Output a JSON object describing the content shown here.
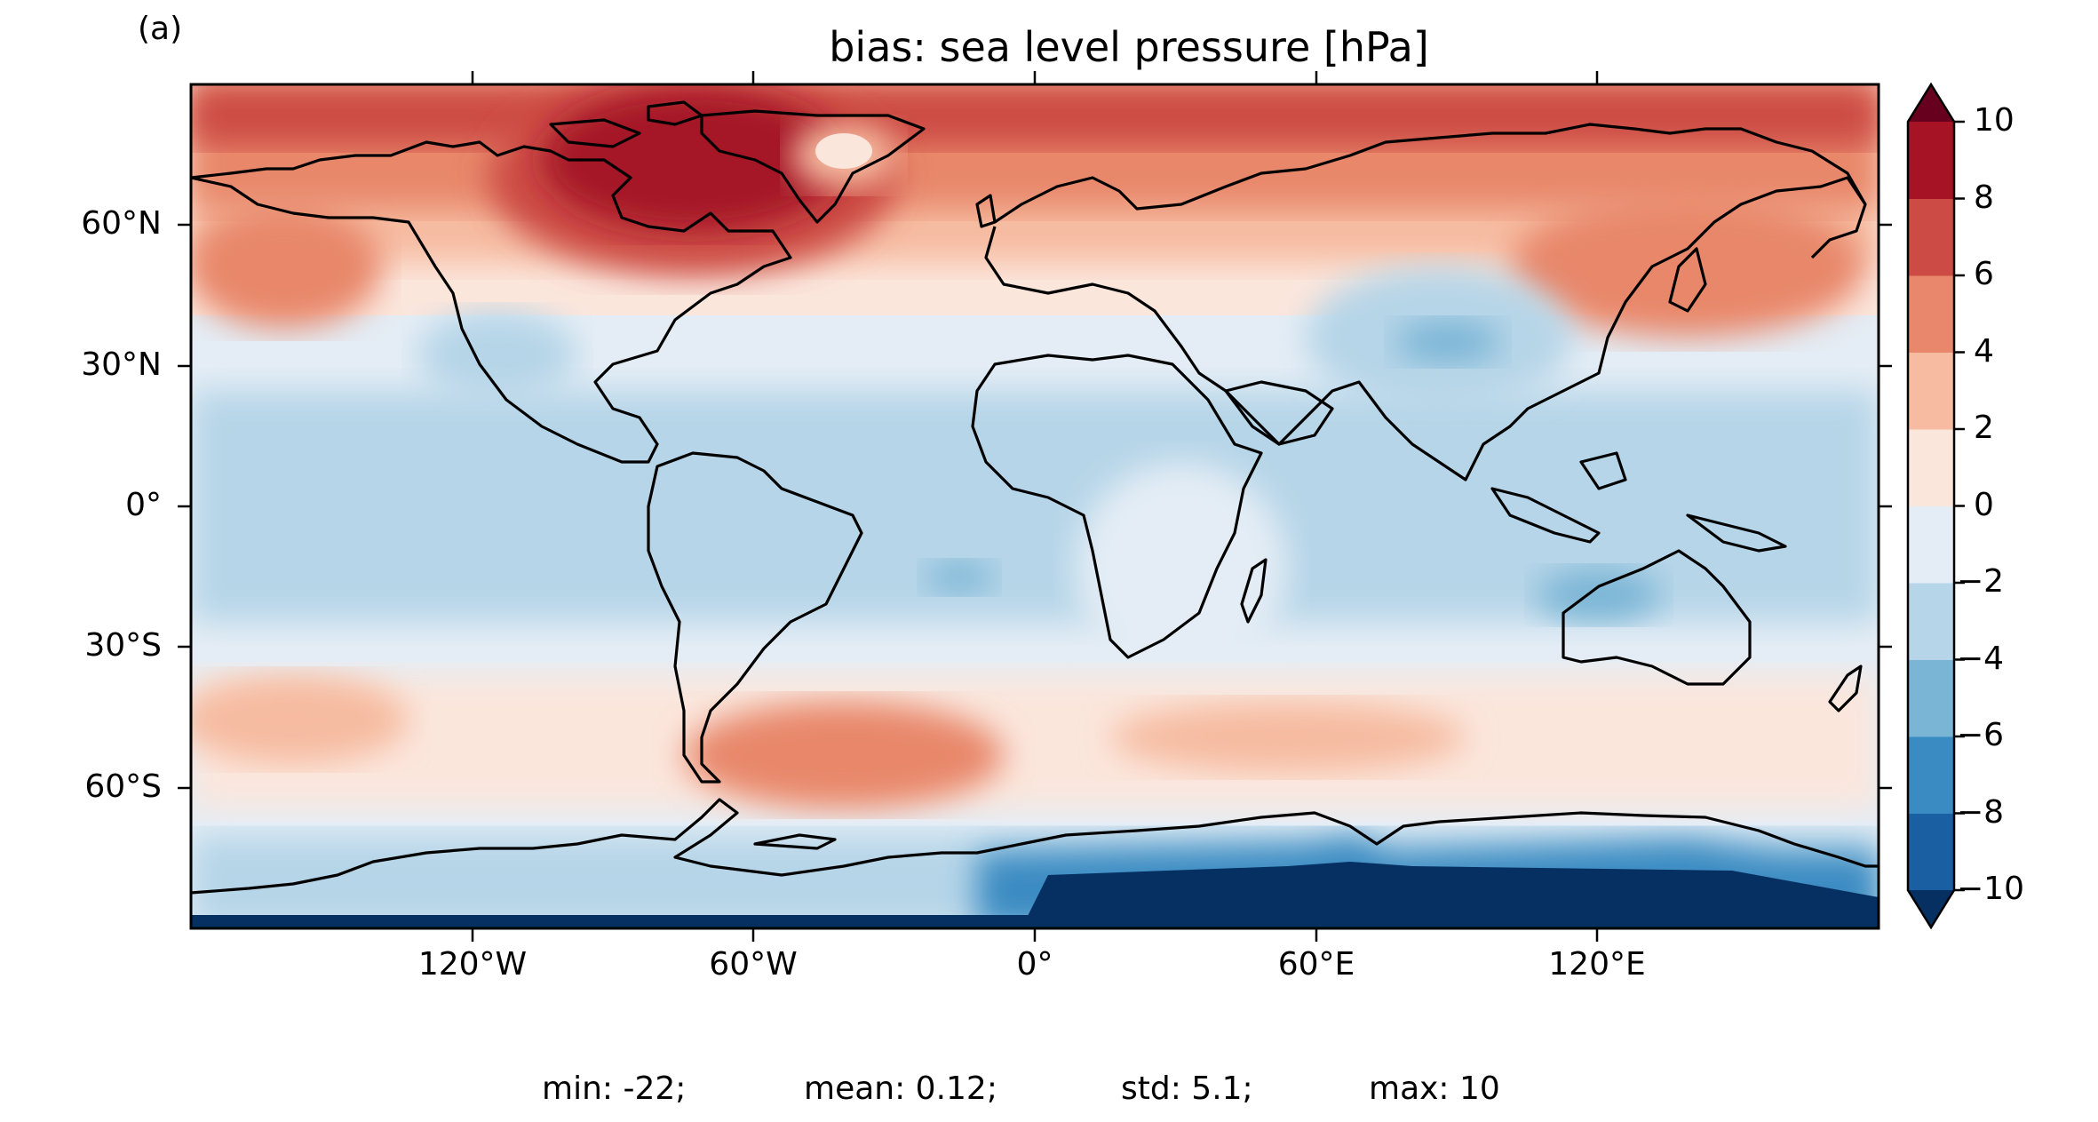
{
  "panel_label": "(a)",
  "title": "bias: sea level pressure [hPa]",
  "map": {
    "projection": "PlateCarree",
    "lon_ticks": [
      "120°W",
      "60°W",
      "0°",
      "60°E",
      "120°E"
    ],
    "lat_ticks": [
      "60°N",
      "30°N",
      "0°",
      "30°S",
      "60°S"
    ],
    "coastlines": true
  },
  "colorbar": {
    "cmap": "RdBu_r",
    "levels": [
      -10,
      -8,
      -6,
      -4,
      -2,
      0,
      2,
      4,
      6,
      8,
      10
    ],
    "tick_labels": [
      "10",
      "8",
      "6",
      "4",
      "2",
      "0",
      "−2",
      "−4",
      "−6",
      "−8",
      "−10"
    ],
    "extend": "both",
    "colors": [
      "#053061",
      "#1a5fa2",
      "#3a8bc2",
      "#7ab5d6",
      "#b6d5e8",
      "#e4edf5",
      "#fbe6dc",
      "#f6bba0",
      "#e8876b",
      "#cc4b45",
      "#a51325",
      "#67001f"
    ]
  },
  "stats": {
    "min": "min: -22;",
    "mean": "mean: 0.12;",
    "std": "std: 5.1;",
    "max": "max: 10"
  }
}
